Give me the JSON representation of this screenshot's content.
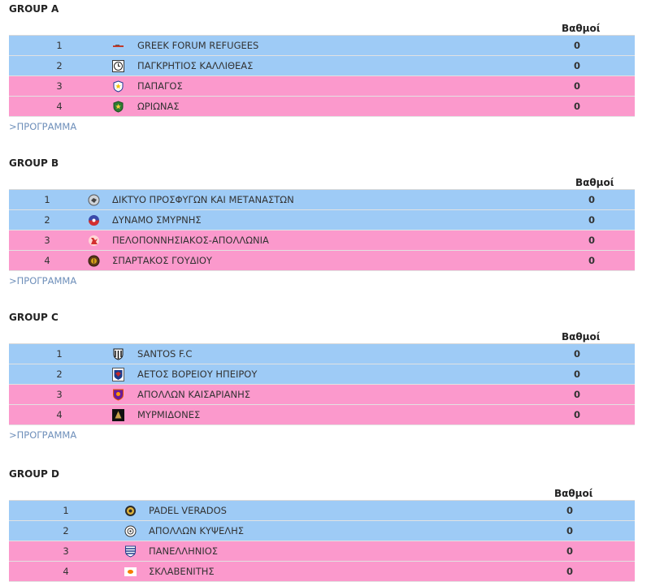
{
  "points_label": "Βαθμοί",
  "program_link": ">ΠΡΟΓΡΑΜΜΑ",
  "colors": {
    "top_rows": "#9ecbf6",
    "bottom_rows": "#fb99cc",
    "link": "#6e8fba"
  },
  "groups": [
    {
      "title": "GROUP A",
      "rows": [
        {
          "pos": "1",
          "team": "GREEK FORUM REFUGEES",
          "points": "0",
          "logo": "gfr-logo-icon"
        },
        {
          "pos": "2",
          "team": "ΠΑΓΚΡΗΤΙΟΣ ΚΑΛΛΙΘΕΑΣ",
          "points": "0",
          "logo": "clock-crest-icon"
        },
        {
          "pos": "3",
          "team": "ΠΑΠΑΓΟΣ",
          "points": "0",
          "logo": "star-crest-icon"
        },
        {
          "pos": "4",
          "team": "ΩΡΙΩΝΑΣ",
          "points": "0",
          "logo": "green-shield-icon"
        }
      ]
    },
    {
      "title": "GROUP B",
      "rows": [
        {
          "pos": "1",
          "team": "ΔΙΚΤΥΟ ΠΡΟΣΦΥΓΩΝ ΚΑΙ ΜΕΤΑΝΑΣΤΩΝ",
          "points": "0",
          "logo": "grey-circle-crest-icon"
        },
        {
          "pos": "2",
          "team": "ΔΥΝΑΜΟ ΣΜΥΡΝΗΣ",
          "points": "0",
          "logo": "red-blue-crest-icon"
        },
        {
          "pos": "3",
          "team": "ΠΕΛΟΠΟΝΝΗΣΙΑΚΟΣ-ΑΠΟΛΛΩΝΙΑ",
          "points": "0",
          "logo": "red-figure-crest-icon"
        },
        {
          "pos": "4",
          "team": "ΣΠΑΡΤΑΚΟΣ ΓΟΥΔΙΟΥ",
          "points": "0",
          "logo": "gold-round-crest-icon"
        }
      ]
    },
    {
      "title": "GROUP C",
      "rows": [
        {
          "pos": "1",
          "team": "SANTOS F.C",
          "points": "0",
          "logo": "striped-crest-icon"
        },
        {
          "pos": "2",
          "team": "ΑΕΤΟΣ ΒΟΡΕΙΟΥ ΗΠΕΙΡΟΥ",
          "points": "0",
          "logo": "eagle-crest-icon"
        },
        {
          "pos": "3",
          "team": "ΑΠΟΛΛΩΝ ΚΑΙΣΑΡΙΑΝΗΣ",
          "points": "0",
          "logo": "purple-shield-icon"
        },
        {
          "pos": "4",
          "team": "ΜΥΡΜΙΔΟΝΕΣ",
          "points": "0",
          "logo": "dark-helmet-icon"
        }
      ]
    },
    {
      "title": "GROUP D",
      "rows": [
        {
          "pos": "1",
          "team": "PADEL VERADOS",
          "points": "0",
          "logo": "gold-ring-crest-icon"
        },
        {
          "pos": "2",
          "team": "ΑΠΟΛΛΩΝ ΚΥΨΕΛΗΣ",
          "points": "0",
          "logo": "white-round-crest-icon"
        },
        {
          "pos": "3",
          "team": "ΠΑΝΕΛΛΗΝΙΟΣ",
          "points": "0",
          "logo": "blue-white-shield-icon"
        },
        {
          "pos": "4",
          "team": "ΣΚΛΑΒΕΝΙΤΗΣ",
          "points": "0",
          "logo": "orange-banner-icon"
        }
      ]
    }
  ]
}
